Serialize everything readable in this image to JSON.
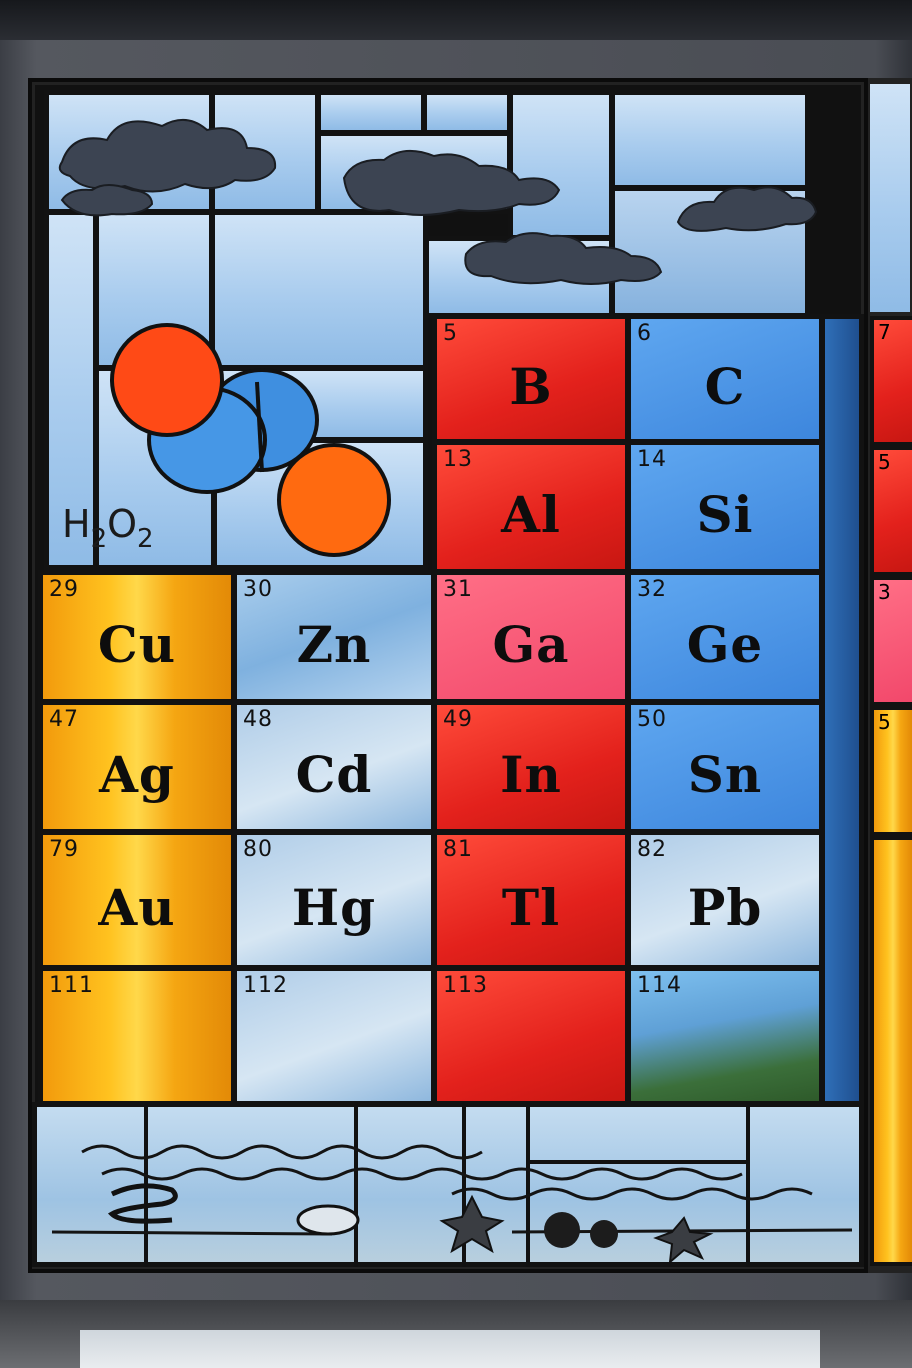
{
  "scene": "stained glass periodic table window",
  "formula": {
    "main_h": "H",
    "sub_2a": "2",
    "main_o": "O",
    "sub_2b": "2"
  },
  "tiles": [
    {
      "num": "5",
      "sym": "B"
    },
    {
      "num": "6",
      "sym": "C"
    },
    {
      "num": "13",
      "sym": "Al"
    },
    {
      "num": "14",
      "sym": "Si"
    },
    {
      "num": "29",
      "sym": "Cu"
    },
    {
      "num": "30",
      "sym": "Zn"
    },
    {
      "num": "31",
      "sym": "Ga"
    },
    {
      "num": "32",
      "sym": "Ge"
    },
    {
      "num": "47",
      "sym": "Ag"
    },
    {
      "num": "48",
      "sym": "Cd"
    },
    {
      "num": "49",
      "sym": "In"
    },
    {
      "num": "50",
      "sym": "Sn"
    },
    {
      "num": "79",
      "sym": "Au"
    },
    {
      "num": "80",
      "sym": "Hg"
    },
    {
      "num": "81",
      "sym": "Tl"
    },
    {
      "num": "82",
      "sym": "Pb"
    },
    {
      "num": "111",
      "sym": ""
    },
    {
      "num": "112",
      "sym": ""
    },
    {
      "num": "113",
      "sym": ""
    },
    {
      "num": "114",
      "sym": ""
    }
  ],
  "edge_numbers": {
    "n7": "7",
    "n5a": "5",
    "n3": "3",
    "n5b": "5"
  },
  "colors": {
    "red": "#e3211c",
    "blue": "#3d86dd",
    "amber": "#ffc21f",
    "lead": "#121212",
    "sky": "#a9ccee"
  }
}
